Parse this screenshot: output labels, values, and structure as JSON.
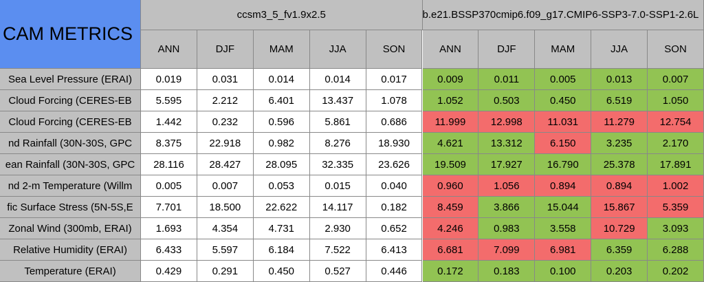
{
  "table": {
    "title": "CAM METRICS",
    "cases": [
      "ccsm3_5_fv1.9x2.5",
      "b.e21.BSSP370cmip6.f09_g17.CMIP6-SSP3-7.0-SSP1-2.6L"
    ],
    "seasons": [
      "ANN",
      "DJF",
      "MAM",
      "JJA",
      "SON",
      "ANN",
      "DJF",
      "MAM",
      "JJA",
      "SON"
    ],
    "rows": [
      [
        "Sea Level Pressure (ERAI)",
        "0.019",
        "0.031",
        "0.014",
        "0.014",
        "0.017",
        "0.009",
        "0.011",
        "0.005",
        "0.013",
        "0.007"
      ],
      [
        "Cloud Forcing (CERES-EB",
        "5.595",
        "2.212",
        "6.401",
        "13.437",
        "1.078",
        "1.052",
        "0.503",
        "0.450",
        "6.519",
        "1.050"
      ],
      [
        "Cloud Forcing (CERES-EB",
        "1.442",
        "0.232",
        "0.596",
        "5.861",
        "0.686",
        "11.999",
        "12.998",
        "11.031",
        "11.279",
        "12.754"
      ],
      [
        "nd Rainfall (30N-30S, GPC",
        "8.375",
        "22.918",
        "0.982",
        "8.276",
        "18.930",
        "4.621",
        "13.312",
        "6.150",
        "3.235",
        "2.170"
      ],
      [
        "ean Rainfall (30N-30S, GPC",
        "28.116",
        "28.427",
        "28.095",
        "32.335",
        "23.626",
        "19.509",
        "17.927",
        "16.790",
        "25.378",
        "17.891"
      ],
      [
        "nd 2-m Temperature (Willm",
        "0.005",
        "0.007",
        "0.053",
        "0.015",
        "0.040",
        "0.960",
        "1.056",
        "0.894",
        "0.894",
        "1.002"
      ],
      [
        "fic Surface Stress (5N-5S,E",
        "7.701",
        "18.500",
        "22.622",
        "14.117",
        "0.182",
        "8.459",
        "3.866",
        "15.044",
        "15.867",
        "5.359"
      ],
      [
        "Zonal Wind (300mb, ERAI)",
        "1.693",
        "4.354",
        "4.731",
        "2.930",
        "0.652",
        "4.246",
        "0.983",
        "3.558",
        "10.729",
        "3.093"
      ],
      [
        "Relative Humidity (ERAI)",
        "6.433",
        "5.597",
        "6.184",
        "7.522",
        "6.413",
        "6.681",
        "7.099",
        "6.981",
        "6.359",
        "6.288"
      ],
      [
        "Temperature (ERAI)",
        "0.429",
        "0.291",
        "0.450",
        "0.527",
        "0.446",
        "0.172",
        "0.183",
        "0.100",
        "0.203",
        "0.202"
      ]
    ],
    "cell_colors": [
      [
        "#92c353",
        "#92c353",
        "#92c353",
        "#92c353",
        "#92c353"
      ],
      [
        "#92c353",
        "#92c353",
        "#92c353",
        "#92c353",
        "#92c353"
      ],
      [
        "#f36c6c",
        "#f36c6c",
        "#f36c6c",
        "#f36c6c",
        "#f36c6c"
      ],
      [
        "#92c353",
        "#92c353",
        "#f36c6c",
        "#92c353",
        "#92c353"
      ],
      [
        "#92c353",
        "#92c353",
        "#92c353",
        "#92c353",
        "#92c353"
      ],
      [
        "#f36c6c",
        "#f36c6c",
        "#f36c6c",
        "#f36c6c",
        "#f36c6c"
      ],
      [
        "#f36c6c",
        "#92c353",
        "#92c353",
        "#f36c6c",
        "#f36c6c"
      ],
      [
        "#f36c6c",
        "#92c353",
        "#92c353",
        "#f36c6c",
        "#92c353"
      ],
      [
        "#f36c6c",
        "#f36c6c",
        "#f36c6c",
        "#92c353",
        "#92c353"
      ],
      [
        "#92c353",
        "#92c353",
        "#92c353",
        "#92c353",
        "#92c353"
      ]
    ]
  }
}
